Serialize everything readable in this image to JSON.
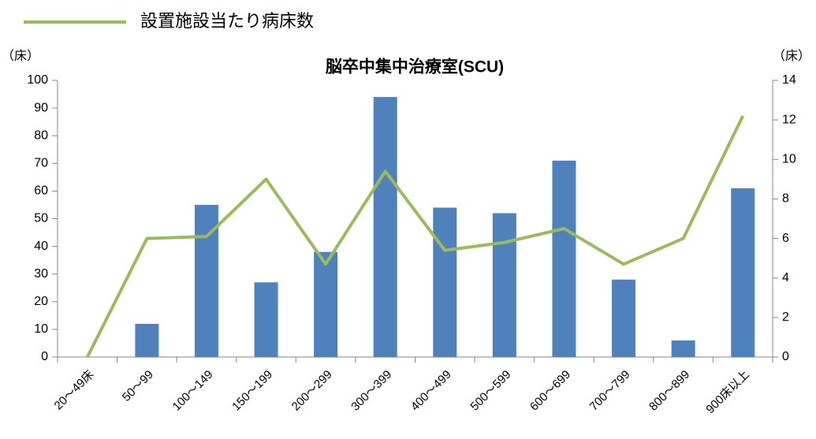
{
  "chart_data": {
    "type": "bar_line",
    "title": "脳卒中集中治療室(SCU)",
    "yaxis_label": "（床）",
    "y2axis_label": "（床）",
    "categories": [
      "20〜49床",
      "50〜99",
      "100〜149",
      "150〜199",
      "200〜299",
      "300〜399",
      "400〜499",
      "500〜599",
      "600〜699",
      "700〜799",
      "800〜899",
      "900床以上"
    ],
    "series": [
      {
        "type": "bar",
        "color": "#4f81bd",
        "values": [
          0,
          12,
          55,
          27,
          38,
          94,
          54,
          52,
          71,
          28,
          6,
          61
        ]
      },
      {
        "type": "line",
        "name": "設置施設当たり病床数",
        "color": "#9bbb59",
        "axis": "y2",
        "values": [
          0,
          6.0,
          6.1,
          9.0,
          4.7,
          9.4,
          5.4,
          5.8,
          6.5,
          4.7,
          6.0,
          12.2
        ]
      }
    ],
    "ylim": [
      0,
      100
    ],
    "yticks": [
      0,
      10,
      20,
      30,
      40,
      50,
      60,
      70,
      80,
      90,
      100
    ],
    "y2lim": [
      0,
      14
    ],
    "y2ticks": [
      0,
      2,
      4,
      6,
      8,
      10,
      12,
      14
    ],
    "legend": "top-left"
  }
}
